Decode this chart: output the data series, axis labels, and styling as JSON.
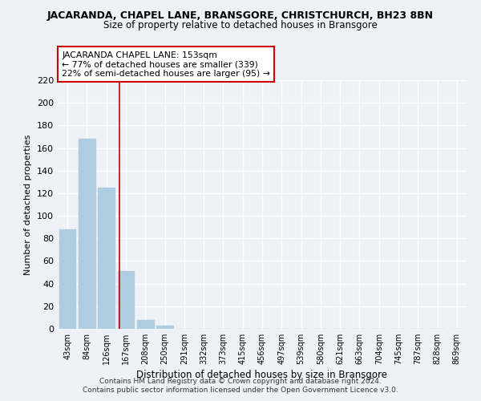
{
  "title": "JACARANDA, CHAPEL LANE, BRANSGORE, CHRISTCHURCH, BH23 8BN",
  "subtitle": "Size of property relative to detached houses in Bransgore",
  "xlabel": "Distribution of detached houses by size in Bransgore",
  "ylabel": "Number of detached properties",
  "bar_labels": [
    "43sqm",
    "84sqm",
    "126sqm",
    "167sqm",
    "208sqm",
    "250sqm",
    "291sqm",
    "332sqm",
    "373sqm",
    "415sqm",
    "456sqm",
    "497sqm",
    "539sqm",
    "580sqm",
    "621sqm",
    "663sqm",
    "704sqm",
    "745sqm",
    "787sqm",
    "828sqm",
    "869sqm"
  ],
  "bar_values": [
    88,
    168,
    125,
    51,
    8,
    3,
    0,
    0,
    0,
    0,
    0,
    0,
    0,
    0,
    0,
    0,
    0,
    0,
    0,
    0,
    0
  ],
  "bar_color": "#aecde1",
  "vline_x": 2.65,
  "vline_color": "#cc0000",
  "annotation_line1": "JACARANDA CHAPEL LANE: 153sqm",
  "annotation_line2": "← 77% of detached houses are smaller (339)",
  "annotation_line3": "22% of semi-detached houses are larger (95) →",
  "annotation_box_color": "#ffffff",
  "annotation_box_edge": "#cc0000",
  "ylim": [
    0,
    220
  ],
  "yticks": [
    0,
    20,
    40,
    60,
    80,
    100,
    120,
    140,
    160,
    180,
    200,
    220
  ],
  "footer1": "Contains HM Land Registry data © Crown copyright and database right 2024.",
  "footer2": "Contains public sector information licensed under the Open Government Licence v3.0.",
  "bg_color": "#eef2f7",
  "grid_color": "#ffffff"
}
